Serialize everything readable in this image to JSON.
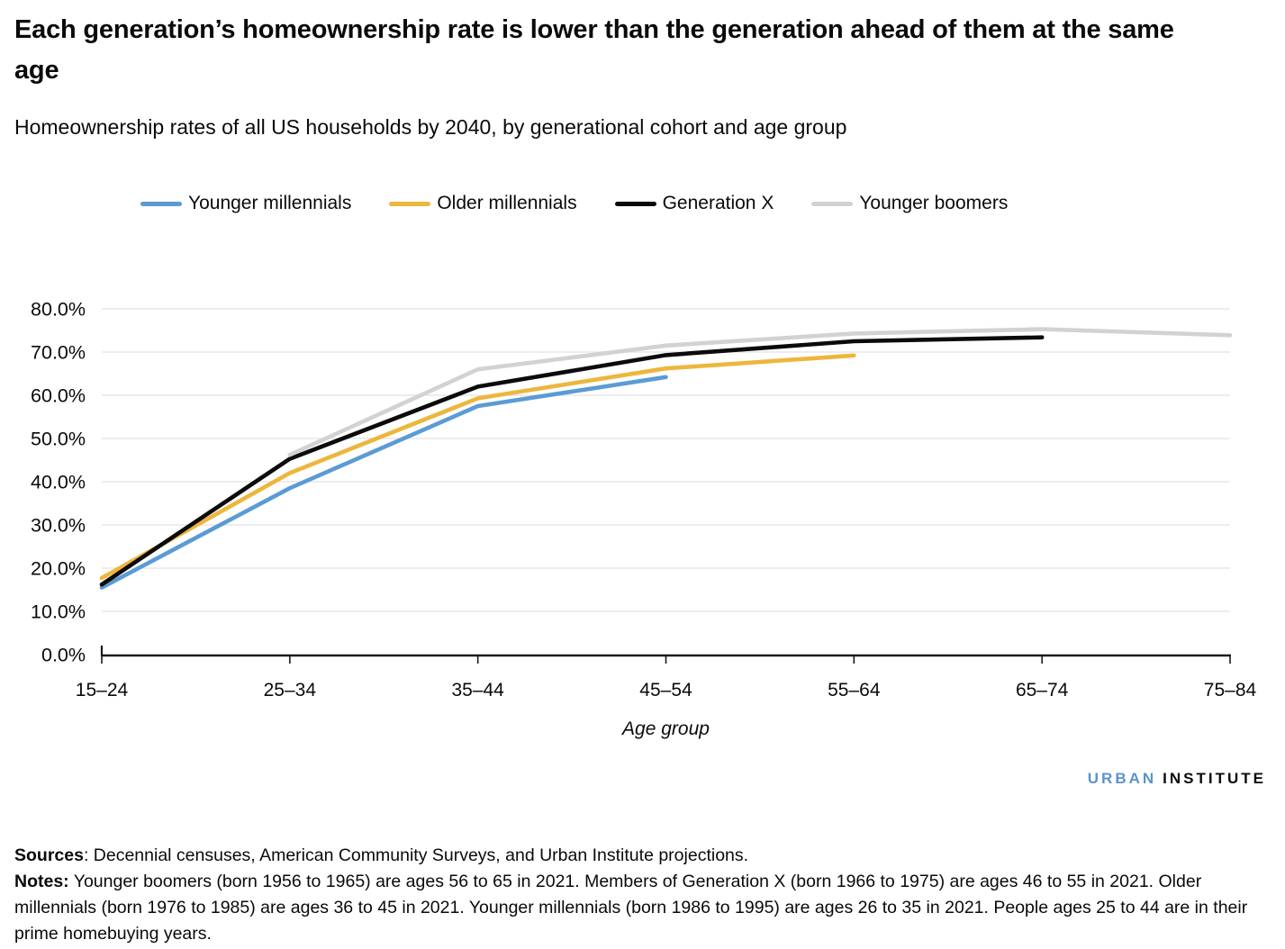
{
  "chart_data": {
    "type": "line",
    "title": "Each generation’s homeownership rate is lower than the generation ahead of them at the same age",
    "subtitle": "Homeownership rates of all US households by 2040, by generational cohort and age group",
    "categories": [
      "15–24",
      "25–34",
      "35–44",
      "45–54",
      "55–64",
      "65–74",
      "75–84"
    ],
    "series": [
      {
        "name": "Younger millennials",
        "color": "#5B9BD5",
        "values": [
          15.5,
          38.5,
          57.5,
          64.2,
          null,
          null,
          null
        ]
      },
      {
        "name": "Older millennials",
        "color": "#EDB63C",
        "values": [
          17.7,
          42.0,
          59.3,
          66.2,
          69.2,
          null,
          null
        ]
      },
      {
        "name": "Generation X",
        "color": "#0B0B0B",
        "values": [
          16.2,
          45.3,
          62.0,
          69.3,
          72.5,
          73.4,
          null
        ]
      },
      {
        "name": "Younger boomers",
        "color": "#D2D2D2",
        "values": [
          null,
          46.2,
          66.0,
          71.5,
          74.3,
          75.3,
          73.9
        ]
      }
    ],
    "xlabel": "Age group",
    "ylabel": "",
    "ylim": [
      0,
      80
    ],
    "yticks": [
      0,
      10,
      20,
      30,
      40,
      50,
      60,
      70,
      80
    ],
    "ytick_format": "one_decimal_percent",
    "grid": "horizontal",
    "gridline_color": "#E2E2E2",
    "axis_color": "#1A1A1A",
    "legend_position": "top"
  },
  "footer": {
    "logo_urban": "URBAN",
    "logo_institute": "INSTITUTE",
    "logo_urban_color": "#5B93CC",
    "sources_label": "Sources",
    "sources_text": ":  Decennial censuses, American Community Surveys, and Urban Institute projections.",
    "notes_label": "Notes:",
    "notes_text": " Younger boomers (born 1956 to 1965) are ages 56 to 65 in 2021. Members of Generation X (born 1966 to 1975) are ages 46 to 55 in 2021. Older millennials (born 1976 to 1985) are ages 36 to 45 in 2021. Younger millennials (born 1986 to 1995) are ages 26 to 35 in 2021. People ages 25 to 44 are in their prime homebuying years."
  }
}
